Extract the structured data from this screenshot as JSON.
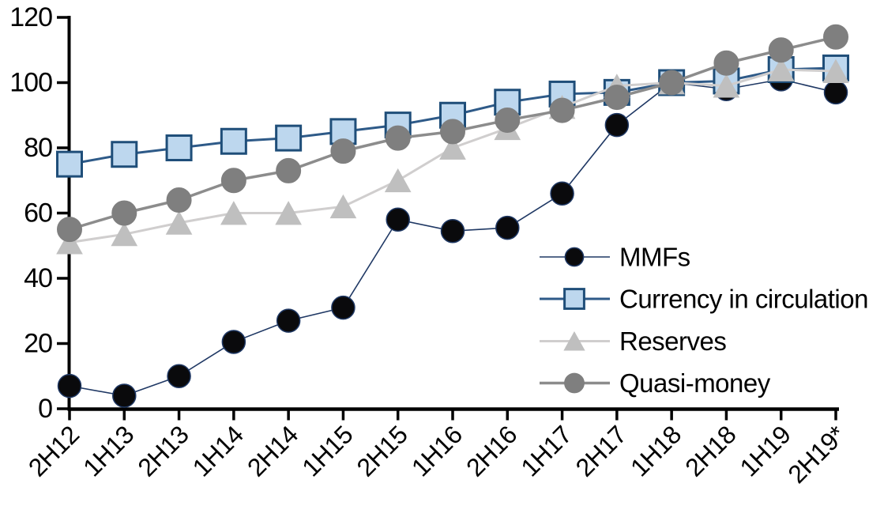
{
  "chart_data": {
    "type": "line",
    "title": "",
    "xlabel": "",
    "ylabel": "",
    "categories": [
      "2H12",
      "1H13",
      "2H13",
      "1H14",
      "2H14",
      "1H15",
      "2H15",
      "1H16",
      "2H16",
      "1H17",
      "2H17",
      "1H18",
      "2H18",
      "1H19",
      "2H19*"
    ],
    "series": [
      {
        "name": "MMFs",
        "marker": "circle",
        "values": [
          7,
          4,
          10,
          20.5,
          27,
          31,
          58,
          54.5,
          55.5,
          66,
          87,
          100,
          98,
          101,
          97
        ],
        "line_color": "#1F3864",
        "line_width": 1.6,
        "marker_fill": "#0A0A0C",
        "marker_stroke": "#1F3864",
        "marker_stroke_width": 1.5,
        "marker_size": 29
      },
      {
        "name": "Currency in circulation",
        "marker": "square",
        "values": [
          75,
          78,
          80,
          82,
          83,
          85,
          87,
          90,
          94,
          96.5,
          97,
          100,
          100.5,
          104,
          104.5
        ],
        "line_color": "#2E5A88",
        "line_width": 3,
        "marker_fill": "#BDD7EE",
        "marker_stroke": "#1F4E79",
        "marker_stroke_width": 3,
        "marker_size": 31
      },
      {
        "name": "Reserves",
        "marker": "triangle",
        "values": [
          51,
          53.5,
          57,
          60,
          60,
          62,
          70,
          80,
          86,
          92.5,
          99,
          100,
          99,
          104,
          103.5
        ],
        "line_color": "#D0CECE",
        "line_width": 3,
        "marker_fill": "#BFBFBF",
        "marker_stroke": "#BFBFBF",
        "marker_stroke_width": 1,
        "marker_size": 32
      },
      {
        "name": "Quasi-money",
        "marker": "circle",
        "values": [
          55,
          60,
          64,
          70,
          73,
          79,
          83,
          85,
          88.5,
          91.5,
          95.5,
          100,
          106,
          110,
          114
        ],
        "line_color": "#8C8C8C",
        "line_width": 3.5,
        "marker_fill": "#7F7F7F",
        "marker_stroke": "#7F7F7F",
        "marker_stroke_width": 1,
        "marker_size": 31
      }
    ],
    "ylim": [
      0,
      120
    ],
    "yticks": [
      0,
      20,
      40,
      60,
      80,
      100,
      120
    ],
    "grid": false,
    "axis_color": "#000000",
    "x_labels_rotated_degrees": -45,
    "legend": {
      "position": "inside-right",
      "entries": [
        "MMFs",
        "Currency in circulation",
        "Reserves",
        "Quasi-money"
      ]
    }
  }
}
